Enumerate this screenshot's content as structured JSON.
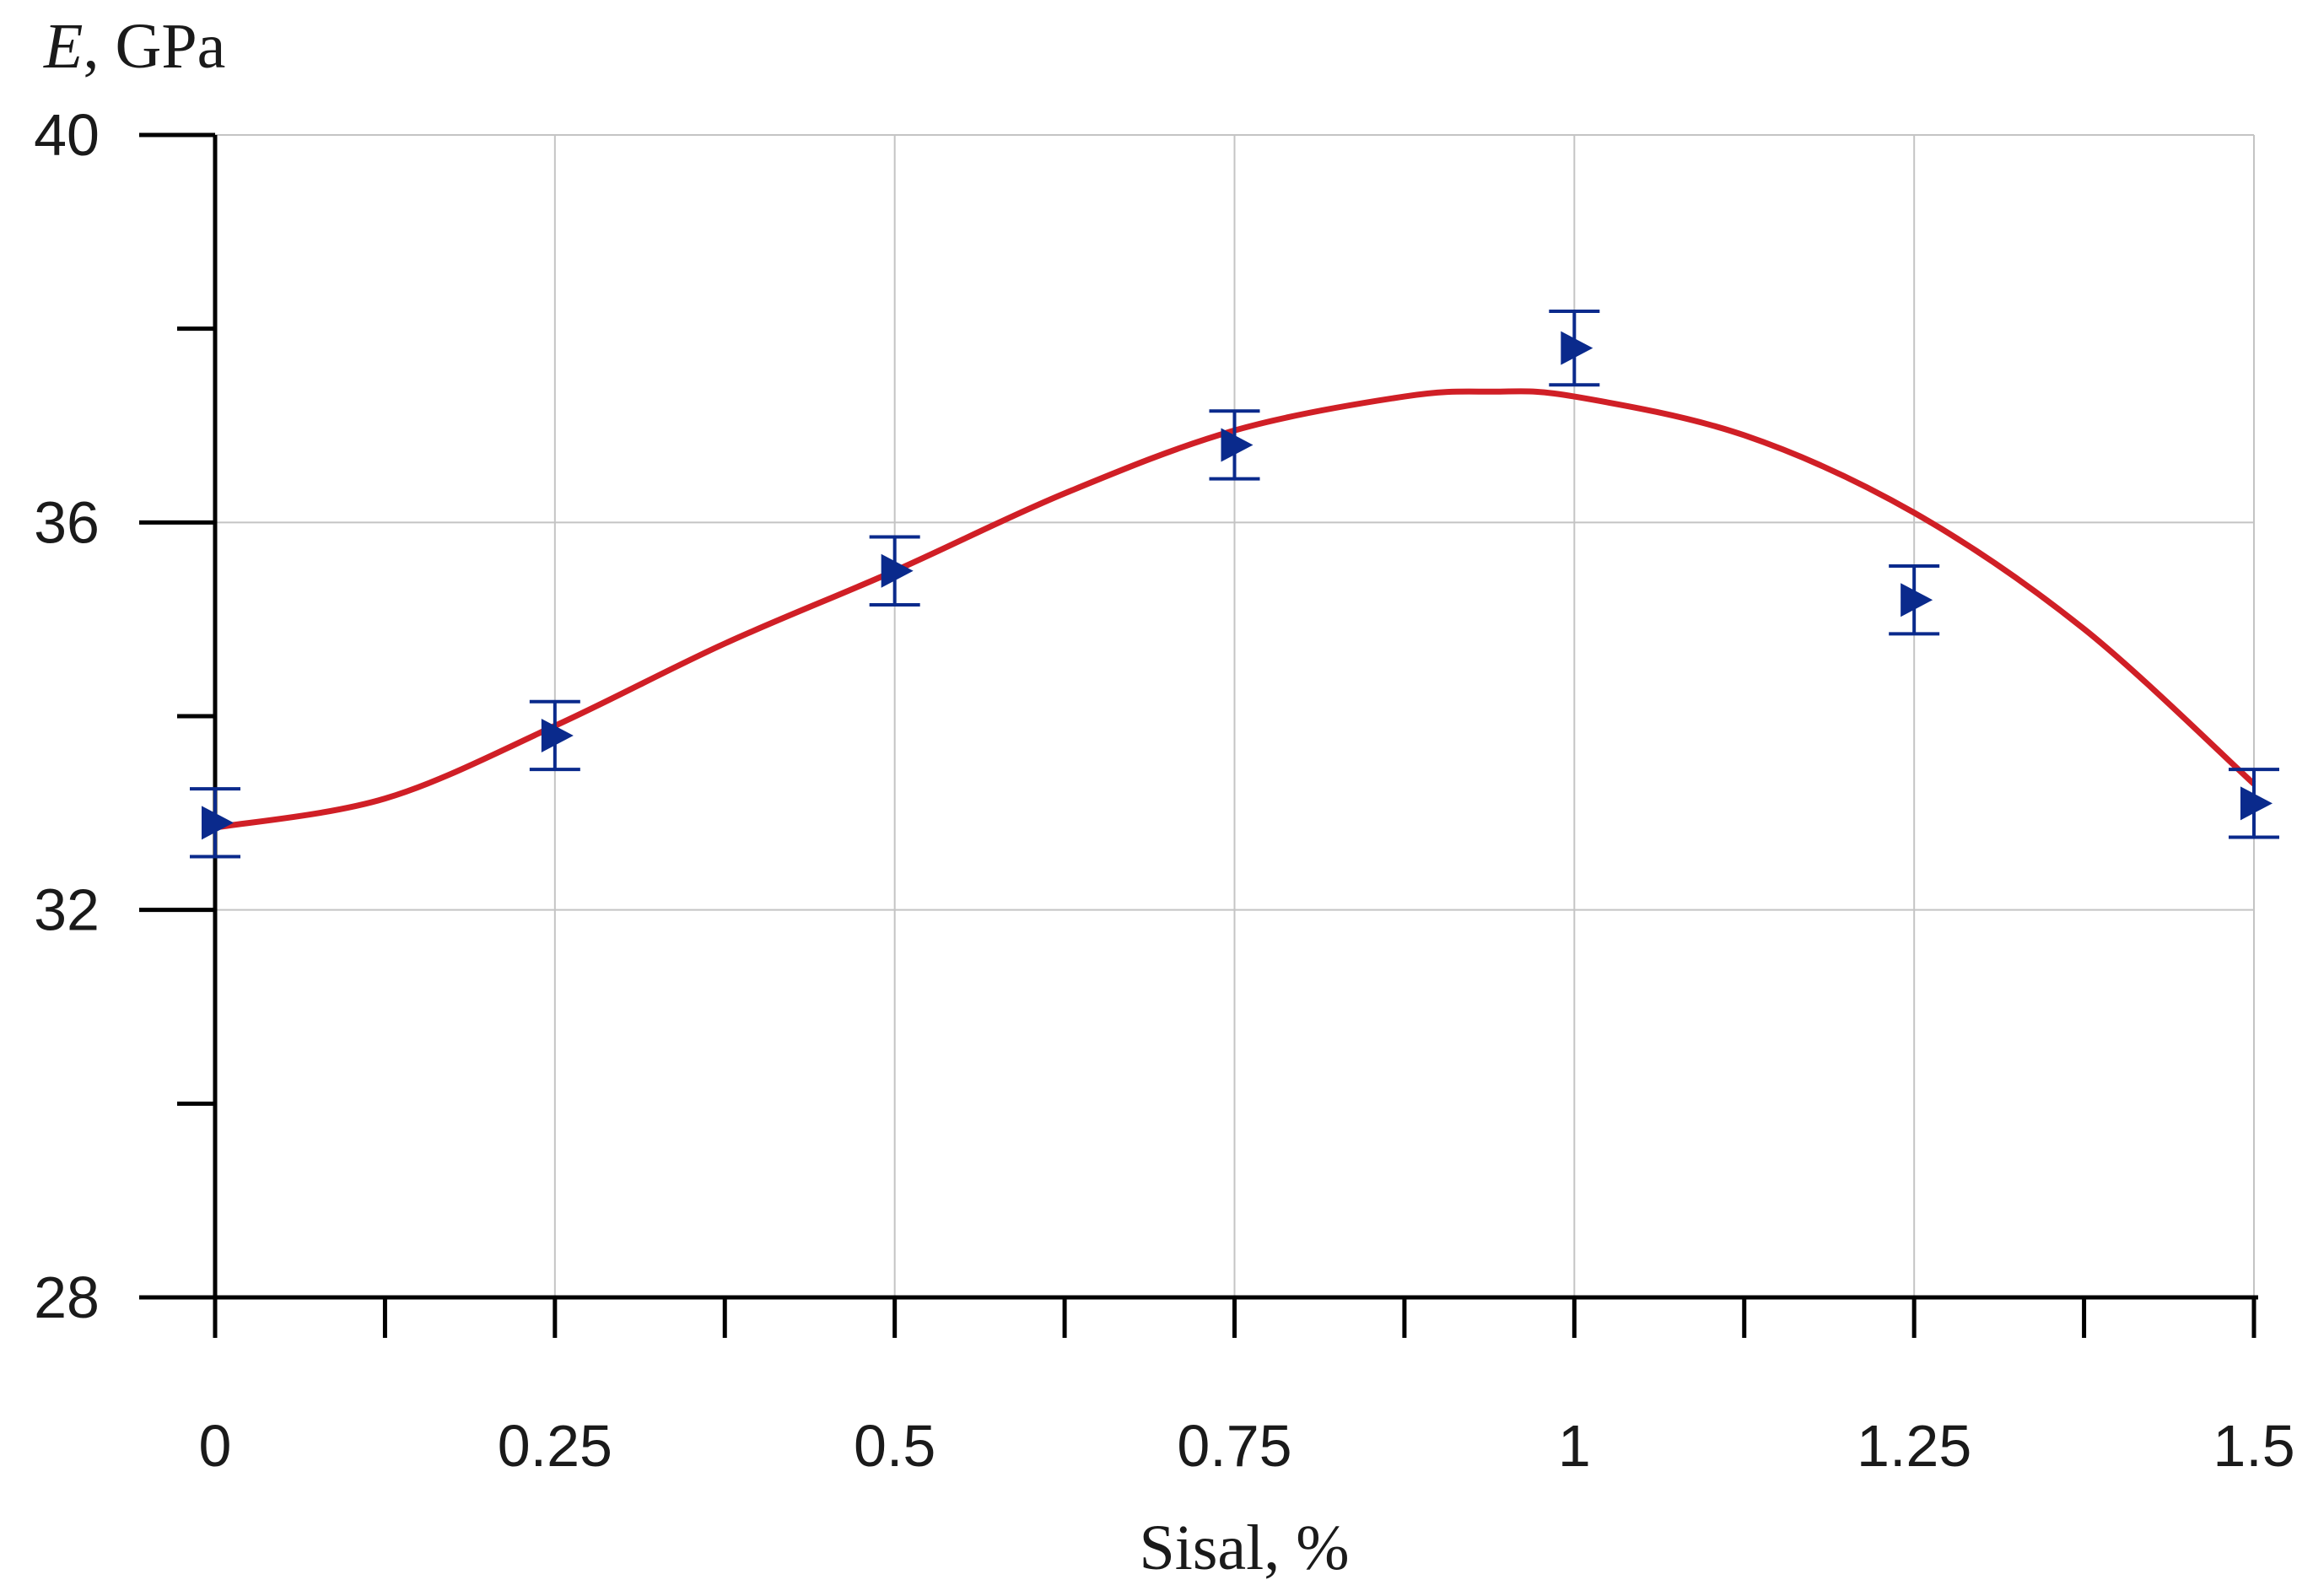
{
  "chart_data": {
    "type": "scatter",
    "title": "",
    "xlabel": "Sisal, %",
    "ylabel_symbol": "E",
    "ylabel_unit": ", GPa",
    "xlim": [
      0,
      1.5
    ],
    "ylim": [
      28,
      40
    ],
    "xticks": [
      0,
      0.25,
      0.5,
      0.75,
      1,
      1.25,
      1.5
    ],
    "xtick_labels": [
      "0",
      "0.25",
      "0.5",
      "0.75",
      "1",
      "1.25",
      "1.5"
    ],
    "x_minor_ticks": [
      0.125,
      0.375,
      0.625,
      0.875,
      1.125,
      1.375
    ],
    "yticks": [
      28,
      32,
      36,
      40
    ],
    "ytick_labels": [
      "28",
      "32",
      "36",
      "40"
    ],
    "y_minor_ticks": [
      30,
      34,
      38
    ],
    "grid": true,
    "series": [
      {
        "kind": "points_with_error_bars",
        "marker": "right-triangle",
        "color": "#0a2a8c",
        "x": [
          0,
          0.25,
          0.5,
          0.75,
          1,
          1.25,
          1.5
        ],
        "y": [
          32.9,
          33.8,
          35.5,
          36.8,
          37.8,
          35.2,
          33.1
        ],
        "error": [
          0.35,
          0.35,
          0.35,
          0.35,
          0.38,
          0.35,
          0.35
        ]
      },
      {
        "kind": "fit_curve",
        "color": "#d01f26",
        "x": [
          0,
          0.125,
          0.25,
          0.375,
          0.5,
          0.625,
          0.75,
          0.875,
          0.94,
          1,
          1.125,
          1.25,
          1.375,
          1.5
        ],
        "y": [
          32.85,
          33.15,
          33.9,
          34.75,
          35.5,
          36.3,
          36.95,
          37.3,
          37.35,
          37.3,
          36.9,
          36.1,
          34.9,
          33.3
        ]
      }
    ]
  }
}
